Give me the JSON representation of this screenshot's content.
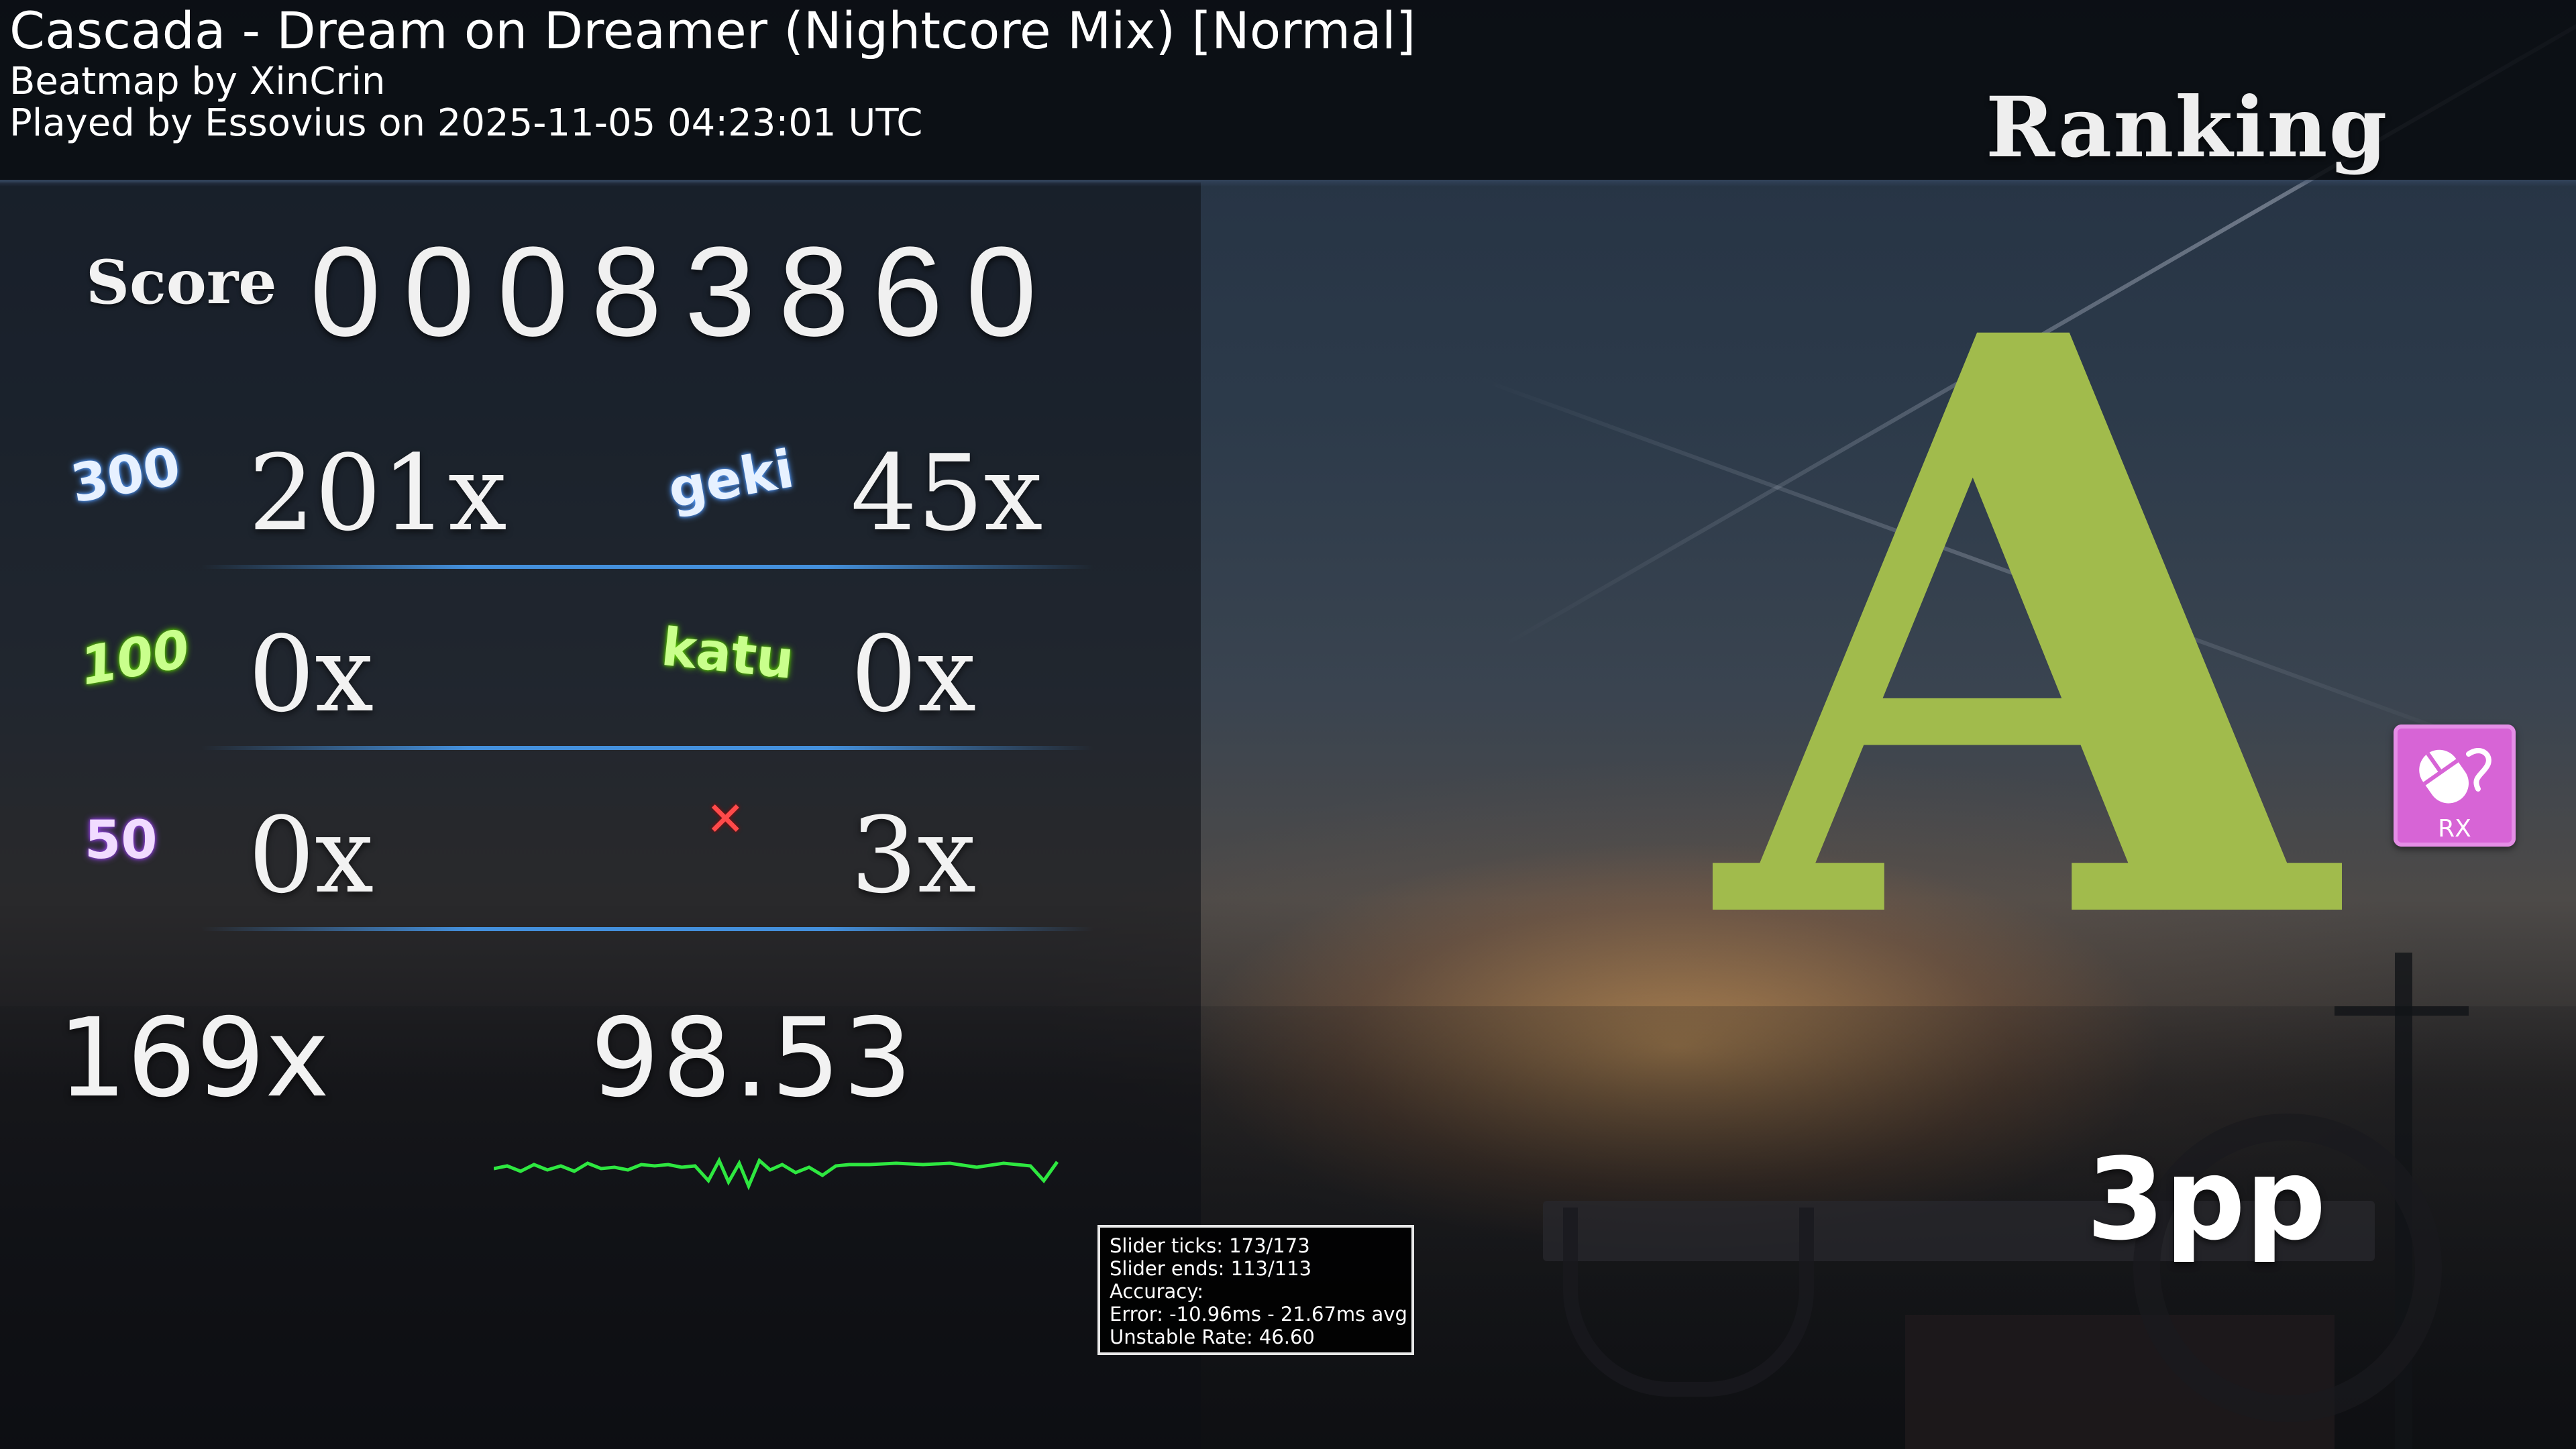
{
  "header": {
    "title": "Cascada - Dream on Dreamer (Nightcore Mix) [Normal]",
    "beatmap_by": "Beatmap by XinCrin",
    "played_by": "Played by Essovius on 2025-11-05 04:23:01 UTC",
    "ranking_label": "Ranking"
  },
  "score": {
    "label": "Score",
    "value": "00083860"
  },
  "hits": {
    "h300": {
      "icon": "300",
      "value": "201x",
      "color": "#cfe6ff"
    },
    "geki": {
      "icon": "geki",
      "value": "45x",
      "color": "#cfe6ff"
    },
    "h100": {
      "icon": "100",
      "value": "0x",
      "color": "#b6ff6a"
    },
    "katu": {
      "icon": "katu",
      "value": "0x",
      "color": "#b6ff6a"
    },
    "h50": {
      "icon": "50",
      "value": "0x",
      "color": "#e7c3ff"
    },
    "miss": {
      "icon": "✕",
      "value": "3x",
      "color": "#ff4a4a"
    }
  },
  "combo": "169x",
  "accuracy": "98.53",
  "info": {
    "slider_ticks": "Slider ticks: 173/173",
    "slider_ends": "Slider ends: 113/113",
    "accuracy": "Accuracy:",
    "error": "Error: -10.96ms - 21.67ms avg",
    "unstable_rate": "Unstable Rate: 46.60"
  },
  "grade": {
    "letter": "A",
    "color": "#a1bb4c"
  },
  "mod": {
    "label": "RX",
    "icon": "relax-mouse-icon",
    "color": "#d764d6"
  },
  "pp": "3pp"
}
